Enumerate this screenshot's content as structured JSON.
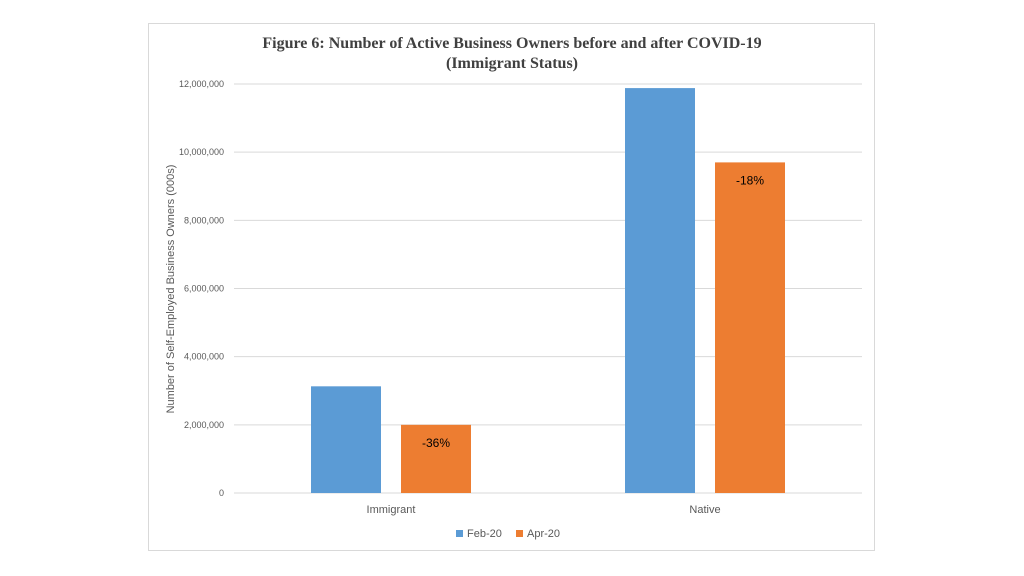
{
  "chart_data": {
    "type": "bar",
    "title_line1": "Figure 6: Number of Active Business Owners before and after COVID-19",
    "title_line2": "(Immigrant Status)",
    "ylabel": "Number of Self-Employed Business Owners (000s)",
    "xlabel": "",
    "ylim": [
      0,
      12000000
    ],
    "yticks": [
      {
        "value": 0,
        "label": "0"
      },
      {
        "value": 2000000,
        "label": "2,000,000"
      },
      {
        "value": 4000000,
        "label": "4,000,000"
      },
      {
        "value": 6000000,
        "label": "6,000,000"
      },
      {
        "value": 8000000,
        "label": "8,000,000"
      },
      {
        "value": 10000000,
        "label": "10,000,000"
      },
      {
        "value": 12000000,
        "label": "12,000,000"
      }
    ],
    "grid": true,
    "legend_position": "bottom",
    "categories": [
      "Immigrant",
      "Native"
    ],
    "series": [
      {
        "name": "Feb-20",
        "color": "#5b9bd5",
        "values": [
          3130000,
          11880000
        ],
        "labels": [
          "",
          ""
        ]
      },
      {
        "name": "Apr-20",
        "color": "#ed7d31",
        "values": [
          2000000,
          9700000
        ],
        "labels": [
          "-36%",
          "-18%"
        ]
      }
    ]
  }
}
